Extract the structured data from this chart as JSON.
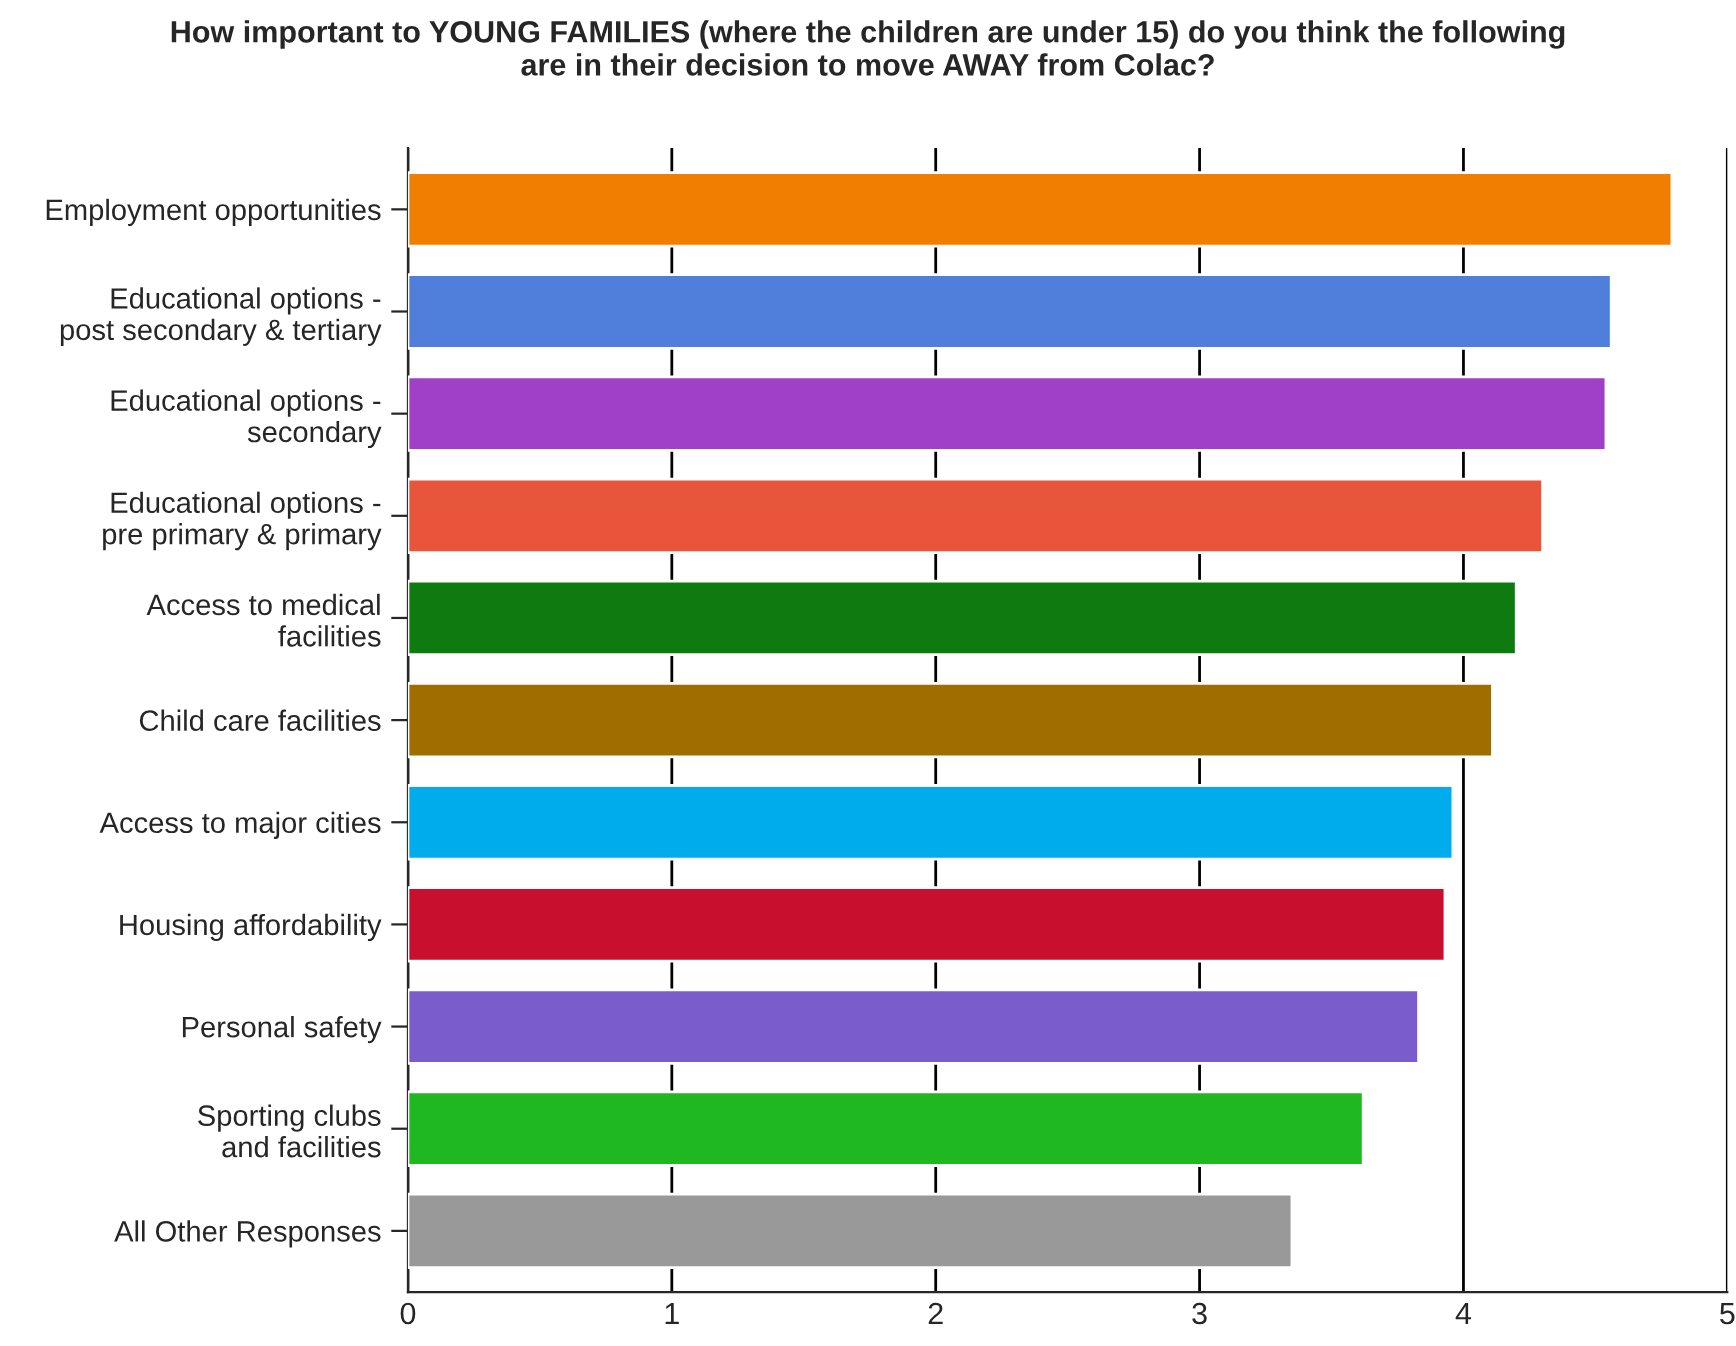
{
  "chart_data": {
    "type": "bar",
    "orientation": "horizontal",
    "title": "How important to YOUNG FAMILIES (where the children are under 15) do you think the following\nare in their decision to move AWAY from Colac?",
    "categories": [
      "Employment opportunities",
      "Educational options -\npost secondary & tertiary",
      "Educational options -\nsecondary",
      "Educational options -\npre primary & primary",
      "Access to medical\nfacilities",
      "Child care facilities",
      "Access to major cities",
      "Housing affordability",
      "Personal safety",
      "Sporting clubs\nand facilities",
      "All Other Responses"
    ],
    "values": [
      4.79,
      4.56,
      4.54,
      4.3,
      4.2,
      4.11,
      3.96,
      3.93,
      3.83,
      3.62,
      3.35
    ],
    "colors": [
      "#f07f00",
      "#4f7fdb",
      "#a040c8",
      "#e8553a",
      "#0f7a10",
      "#a06e00",
      "#00acec",
      "#c8102e",
      "#7a5ccc",
      "#20b820",
      "#999999"
    ],
    "xlim": [
      0,
      5
    ],
    "xticks": [
      0,
      1,
      2,
      3,
      4,
      5
    ],
    "grid": "x",
    "legend": false
  }
}
